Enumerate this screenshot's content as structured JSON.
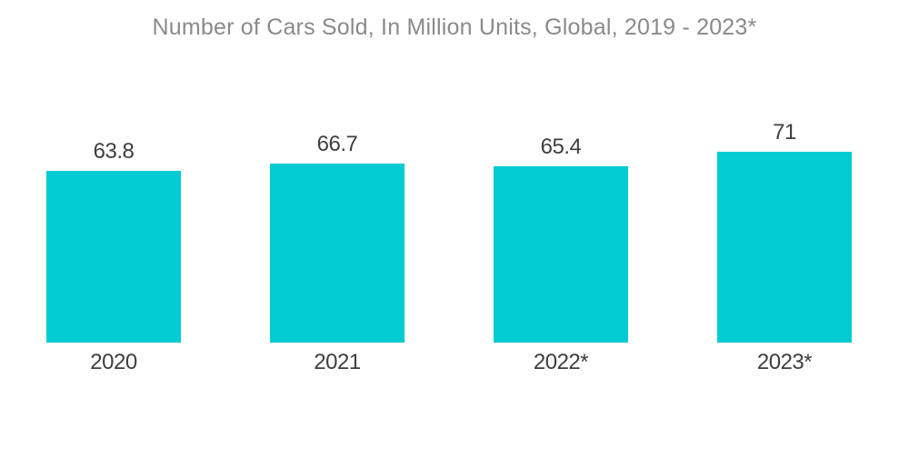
{
  "page": {
    "background": "#FFFFFF"
  },
  "chart_data": {
    "type": "bar",
    "title": "Number of Cars Sold, In Million Units, Global, 2019 - 2023*",
    "categories": [
      "2020",
      "2021",
      "2022*",
      "2023*"
    ],
    "values": [
      63.8,
      66.7,
      65.4,
      71
    ],
    "value_labels": [
      "63.8",
      "66.7",
      "65.4",
      "71"
    ],
    "xlabel": "",
    "ylabel": "",
    "ylim": [
      0,
      85
    ],
    "grid": false,
    "legend": "none",
    "bar_color": "#02CBD3",
    "title_color": "#8A8A8A",
    "label_color": "#3E3E3E"
  }
}
